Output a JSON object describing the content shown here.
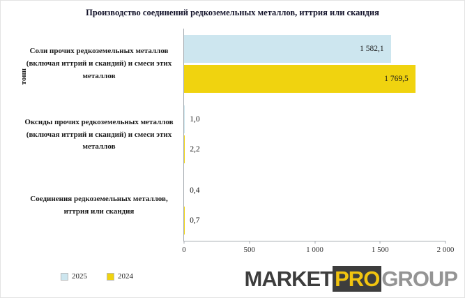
{
  "chart_data": {
    "type": "bar",
    "orientation": "horizontal",
    "title": "Производство соединений редкоземельных металлов, иттрия или скандия",
    "y_axis_title": "тонн",
    "categories": [
      "Соли прочих редкоземельных металлов (включая иттрий и скандий) и смеси этих металлов",
      "Оксиды прочих редкоземельных металлов (включая иттрий и скандий) и смеси этих металлов",
      "Соединения редкоземельных металлов, иттрия или скандия"
    ],
    "series": [
      {
        "name": "2025",
        "color": "#cde6ef",
        "values": [
          1582.1,
          1.0,
          0.4
        ],
        "value_labels": [
          "1 582,1",
          "1,0",
          "0,4"
        ]
      },
      {
        "name": "2024",
        "color": "#f0d30f",
        "values": [
          1769.5,
          2.2,
          0.7
        ],
        "value_labels": [
          "1 769,5",
          "2,2",
          "0,7"
        ]
      }
    ],
    "xlim": [
      0,
      2000
    ],
    "x_ticks": [
      {
        "value": 0,
        "label": "0"
      },
      {
        "value": 500,
        "label": "500"
      },
      {
        "value": 1000,
        "label": "1 000"
      },
      {
        "value": 1500,
        "label": "1 500"
      },
      {
        "value": 2000,
        "label": "2 000"
      }
    ],
    "grid": false,
    "legend_position": "bottom-left"
  },
  "legend": {
    "items": [
      {
        "label": "2025",
        "color": "#cde6ef"
      },
      {
        "label": "2024",
        "color": "#f0d30f"
      }
    ]
  },
  "logo": {
    "part1": "MARKET",
    "part2": "PRO",
    "part3": "GROUP"
  },
  "colors": {
    "axis": "#a6abb1",
    "title_text": "#14142b",
    "label_text": "#1a1a1a"
  }
}
